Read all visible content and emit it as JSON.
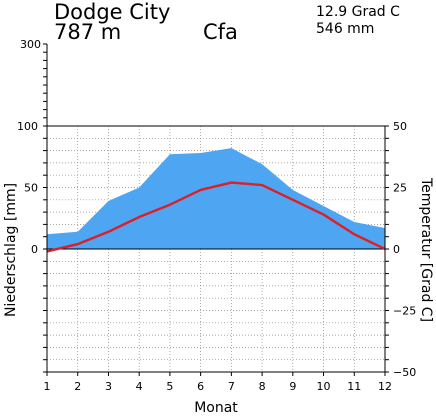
{
  "header": {
    "station": "Dodge City",
    "elevation": "787 m",
    "climate_class": "Cfa",
    "mean_temp": "12.9 Grad C",
    "annual_precip": "546 mm"
  },
  "chart_data": {
    "type": "area",
    "title": "",
    "xlabel": "Monat",
    "ylabel_left": "Niederschlag [mm]",
    "ylabel_right": "Temperatur [Grad C]",
    "x": [
      1,
      2,
      3,
      4,
      5,
      6,
      7,
      8,
      9,
      10,
      11,
      12
    ],
    "xlim": [
      1,
      12
    ],
    "ylim_left": [
      0,
      100
    ],
    "ylim_right": [
      -50,
      50
    ],
    "left_ticks": [
      0,
      50,
      100
    ],
    "left_extension_ticks": [
      300
    ],
    "right_ticks": [
      -50,
      -25,
      0,
      25,
      50
    ],
    "series": [
      {
        "axis": "left",
        "type": "area",
        "color": "#4ea5f2",
        "values": [
          12,
          14,
          39,
          50,
          77,
          78,
          82,
          69,
          48,
          35,
          22,
          17
        ]
      },
      {
        "axis": "right",
        "type": "line",
        "color": "#dd1f26",
        "values": [
          -1,
          2,
          7,
          13,
          18,
          24,
          27,
          26,
          20,
          14,
          6,
          0
        ]
      }
    ],
    "grid": true,
    "colors": {
      "precip_fill": "#4ea5f2",
      "temp_line": "#dd1f26"
    }
  }
}
